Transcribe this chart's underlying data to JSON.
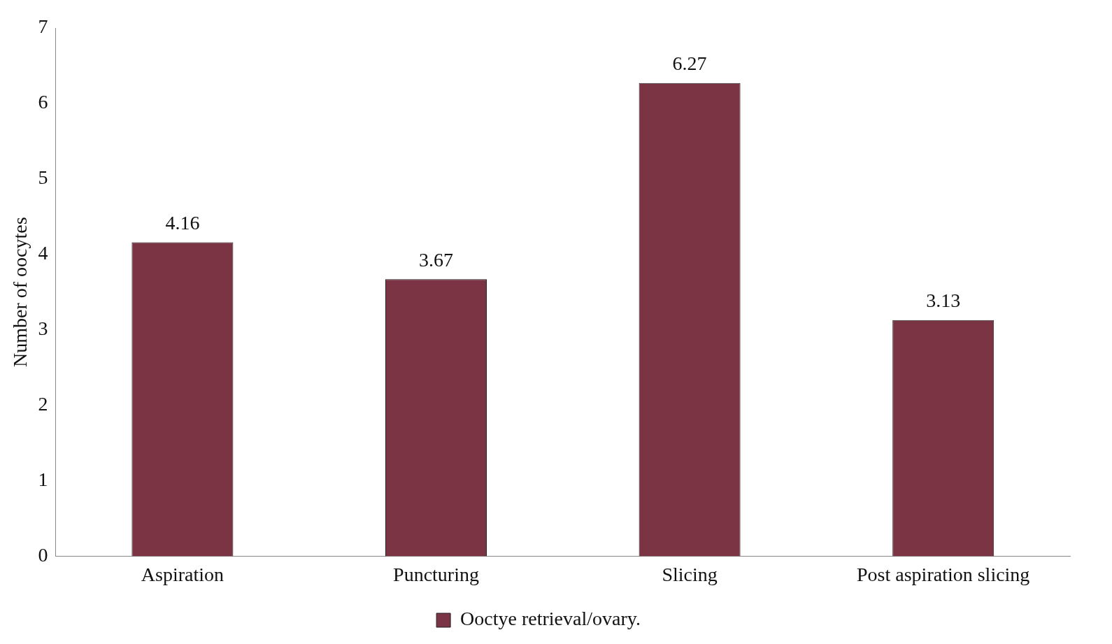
{
  "chart_data": {
    "type": "bar",
    "ylabel": "Number of oocytes",
    "categories": [
      "Aspiration",
      "Puncturing",
      "Slicing",
      "Post aspiration slicing"
    ],
    "series": [
      {
        "name": "Ooctye retrieval/ovary.",
        "color": "#7a3444",
        "values": [
          4.16,
          3.67,
          6.27,
          3.13
        ]
      }
    ],
    "ylim": [
      0,
      7
    ],
    "yticks": [
      0,
      1,
      2,
      3,
      4,
      5,
      6,
      7
    ],
    "grid": false,
    "legend": "bottom",
    "data_labels": true
  }
}
